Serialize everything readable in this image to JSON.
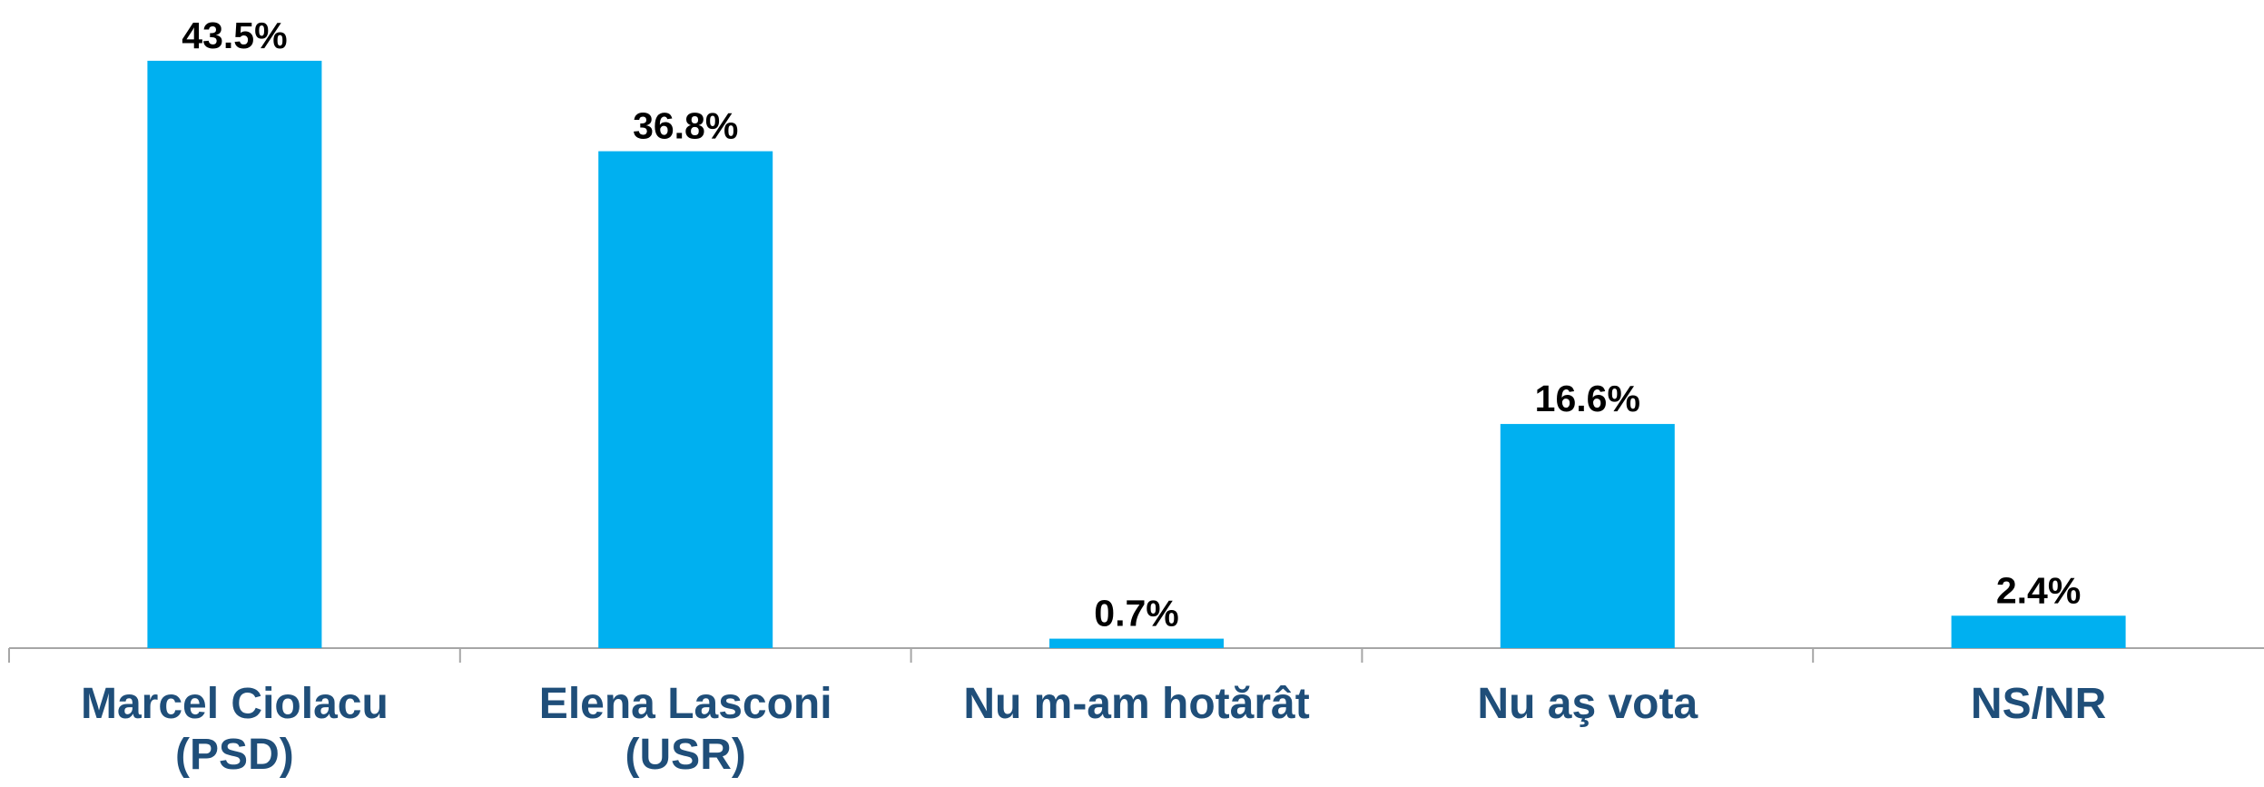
{
  "chart_data": {
    "type": "bar",
    "categories": [
      "Marcel Ciolacu (PSD)",
      "Elena Lasconi (USR)",
      "Nu m-am hotărât",
      "Nu aş vota",
      "NS/NR"
    ],
    "values": [
      43.5,
      36.8,
      0.7,
      16.6,
      2.4
    ],
    "value_labels": [
      "43.5%",
      "36.8%",
      "0.7%",
      "16.6%",
      "2.4%"
    ],
    "color": "#00b0f0",
    "ylim": [
      0,
      48
    ]
  }
}
